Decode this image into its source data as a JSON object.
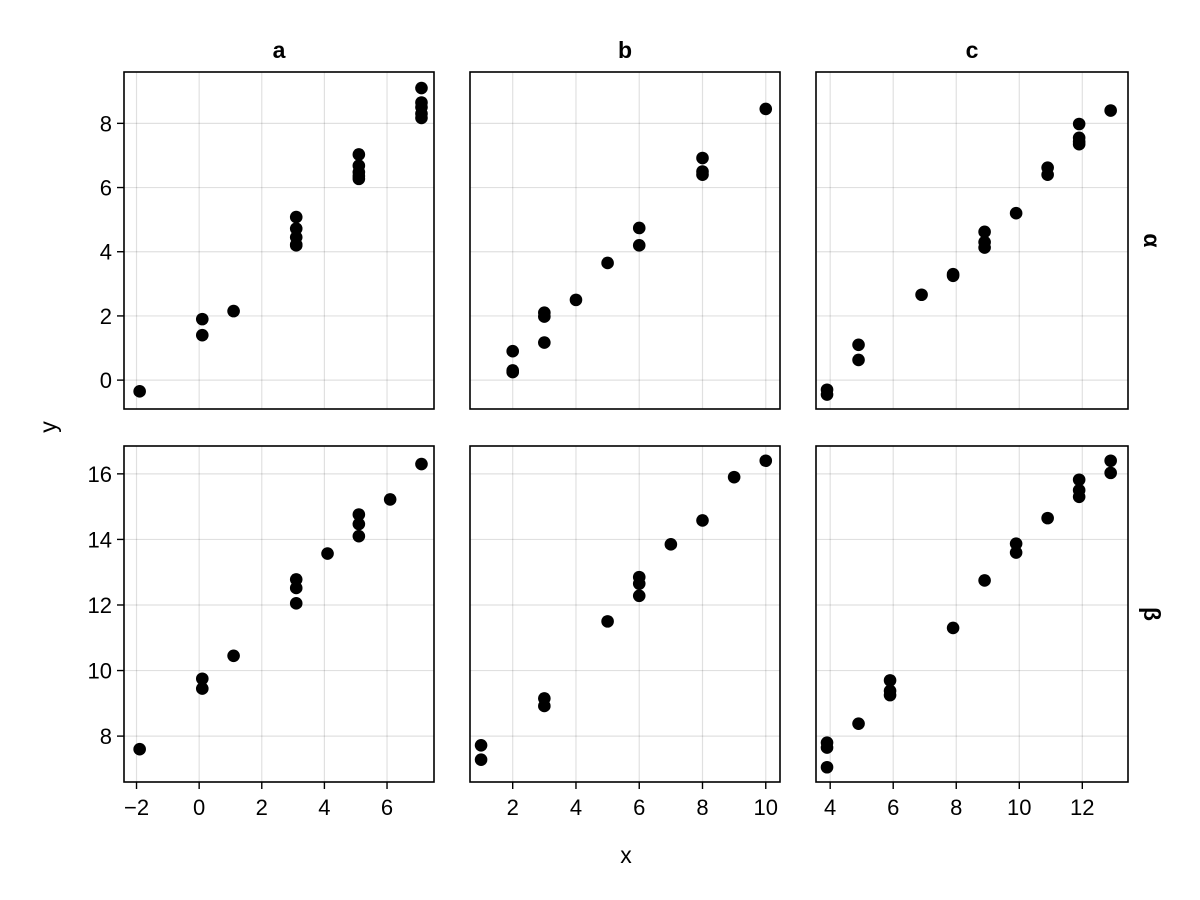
{
  "chart_data": {
    "type": "scatter",
    "xlabel": "x",
    "ylabel": "y",
    "columns": [
      "a",
      "b",
      "c"
    ],
    "rows": [
      "α",
      "β"
    ],
    "panels": [
      {
        "row": 0,
        "col": 0,
        "column": "a",
        "row_label": "α",
        "x": [
          -1.9,
          0.1,
          0.1,
          1.1,
          3.1,
          3.1,
          3.1,
          3.1,
          3.1,
          5.1,
          5.1,
          5.1,
          5.1,
          5.1,
          7.1,
          7.1,
          7.1,
          7.1,
          7.1
        ],
        "y": [
          -0.35,
          1.9,
          1.4,
          2.15,
          5.08,
          4.72,
          4.45,
          4.22,
          4.2,
          7.03,
          6.68,
          6.48,
          6.36,
          6.27,
          9.1,
          8.65,
          8.5,
          8.3,
          8.17
        ]
      },
      {
        "row": 0,
        "col": 1,
        "column": "b",
        "row_label": "α",
        "x": [
          2,
          2,
          2,
          3,
          3,
          3,
          4,
          5,
          6,
          6,
          8,
          8,
          8,
          10
        ],
        "y": [
          0.9,
          0.3,
          0.25,
          2.1,
          1.98,
          1.17,
          2.5,
          3.65,
          4.74,
          4.2,
          6.92,
          6.5,
          6.4,
          8.45
        ]
      },
      {
        "row": 0,
        "col": 2,
        "column": "c",
        "row_label": "α",
        "x": [
          3.9,
          3.9,
          4.9,
          4.9,
          6.9,
          7.9,
          7.9,
          8.9,
          8.9,
          8.9,
          9.9,
          10.9,
          10.9,
          11.9,
          11.9,
          11.9,
          11.9,
          12.9
        ],
        "y": [
          -0.3,
          -0.45,
          1.1,
          0.63,
          2.66,
          3.3,
          3.25,
          4.62,
          4.3,
          4.13,
          5.2,
          6.62,
          6.4,
          7.98,
          7.55,
          7.43,
          7.35,
          8.4
        ]
      },
      {
        "row": 1,
        "col": 0,
        "column": "a",
        "row_label": "β",
        "x": [
          -1.9,
          0.1,
          0.1,
          1.1,
          3.1,
          3.1,
          3.1,
          4.1,
          5.1,
          5.1,
          5.1,
          6.1,
          7.1
        ],
        "y": [
          7.6,
          9.75,
          9.45,
          10.45,
          12.78,
          12.52,
          12.05,
          13.57,
          14.76,
          14.47,
          14.1,
          15.22,
          16.3
        ]
      },
      {
        "row": 1,
        "col": 1,
        "column": "b",
        "row_label": "β",
        "x": [
          1,
          1,
          3,
          3,
          5,
          6,
          6,
          6,
          7,
          8,
          9,
          10
        ],
        "y": [
          7.72,
          7.28,
          9.15,
          8.92,
          11.5,
          12.85,
          12.65,
          12.28,
          13.85,
          14.58,
          15.9,
          16.4
        ]
      },
      {
        "row": 1,
        "col": 2,
        "column": "c",
        "row_label": "β",
        "x": [
          3.9,
          3.9,
          3.9,
          4.9,
          5.9,
          5.9,
          5.9,
          7.9,
          8.9,
          9.9,
          9.9,
          10.9,
          11.9,
          11.9,
          11.9,
          12.9,
          12.9
        ],
        "y": [
          7.8,
          7.65,
          7.05,
          8.38,
          9.7,
          9.38,
          9.25,
          11.3,
          12.75,
          13.87,
          13.6,
          14.65,
          15.82,
          15.5,
          15.3,
          16.4,
          16.03
        ]
      }
    ],
    "x_axes": [
      {
        "col": 0,
        "range": [
          -2.4,
          7.5
        ],
        "ticks": [
          -2,
          0,
          2,
          4,
          6
        ],
        "tick_labels": [
          "−2",
          "0",
          "2",
          "4",
          "6"
        ]
      },
      {
        "col": 1,
        "range": [
          0.65,
          10.45
        ],
        "ticks": [
          2,
          4,
          6,
          8,
          10
        ],
        "tick_labels": [
          "2",
          "4",
          "6",
          "8",
          "10"
        ]
      },
      {
        "col": 2,
        "range": [
          3.55,
          13.45
        ],
        "ticks": [
          4,
          6,
          8,
          10,
          12
        ],
        "tick_labels": [
          "4",
          "6",
          "8",
          "10",
          "12"
        ]
      }
    ],
    "y_axes": [
      {
        "row": 0,
        "range": [
          -0.9,
          9.6
        ],
        "ticks": [
          0,
          2,
          4,
          6,
          8
        ],
        "tick_labels": [
          "0",
          "2",
          "4",
          "6",
          "8"
        ]
      },
      {
        "row": 1,
        "range": [
          6.6,
          16.85
        ],
        "ticks": [
          8,
          10,
          12,
          14,
          16
        ],
        "tick_labels": [
          "8",
          "10",
          "12",
          "14",
          "16"
        ]
      }
    ],
    "grid": true,
    "legend": "none"
  },
  "colors": {
    "point": "#000000",
    "frame": "#000000",
    "background": "#ffffff"
  }
}
